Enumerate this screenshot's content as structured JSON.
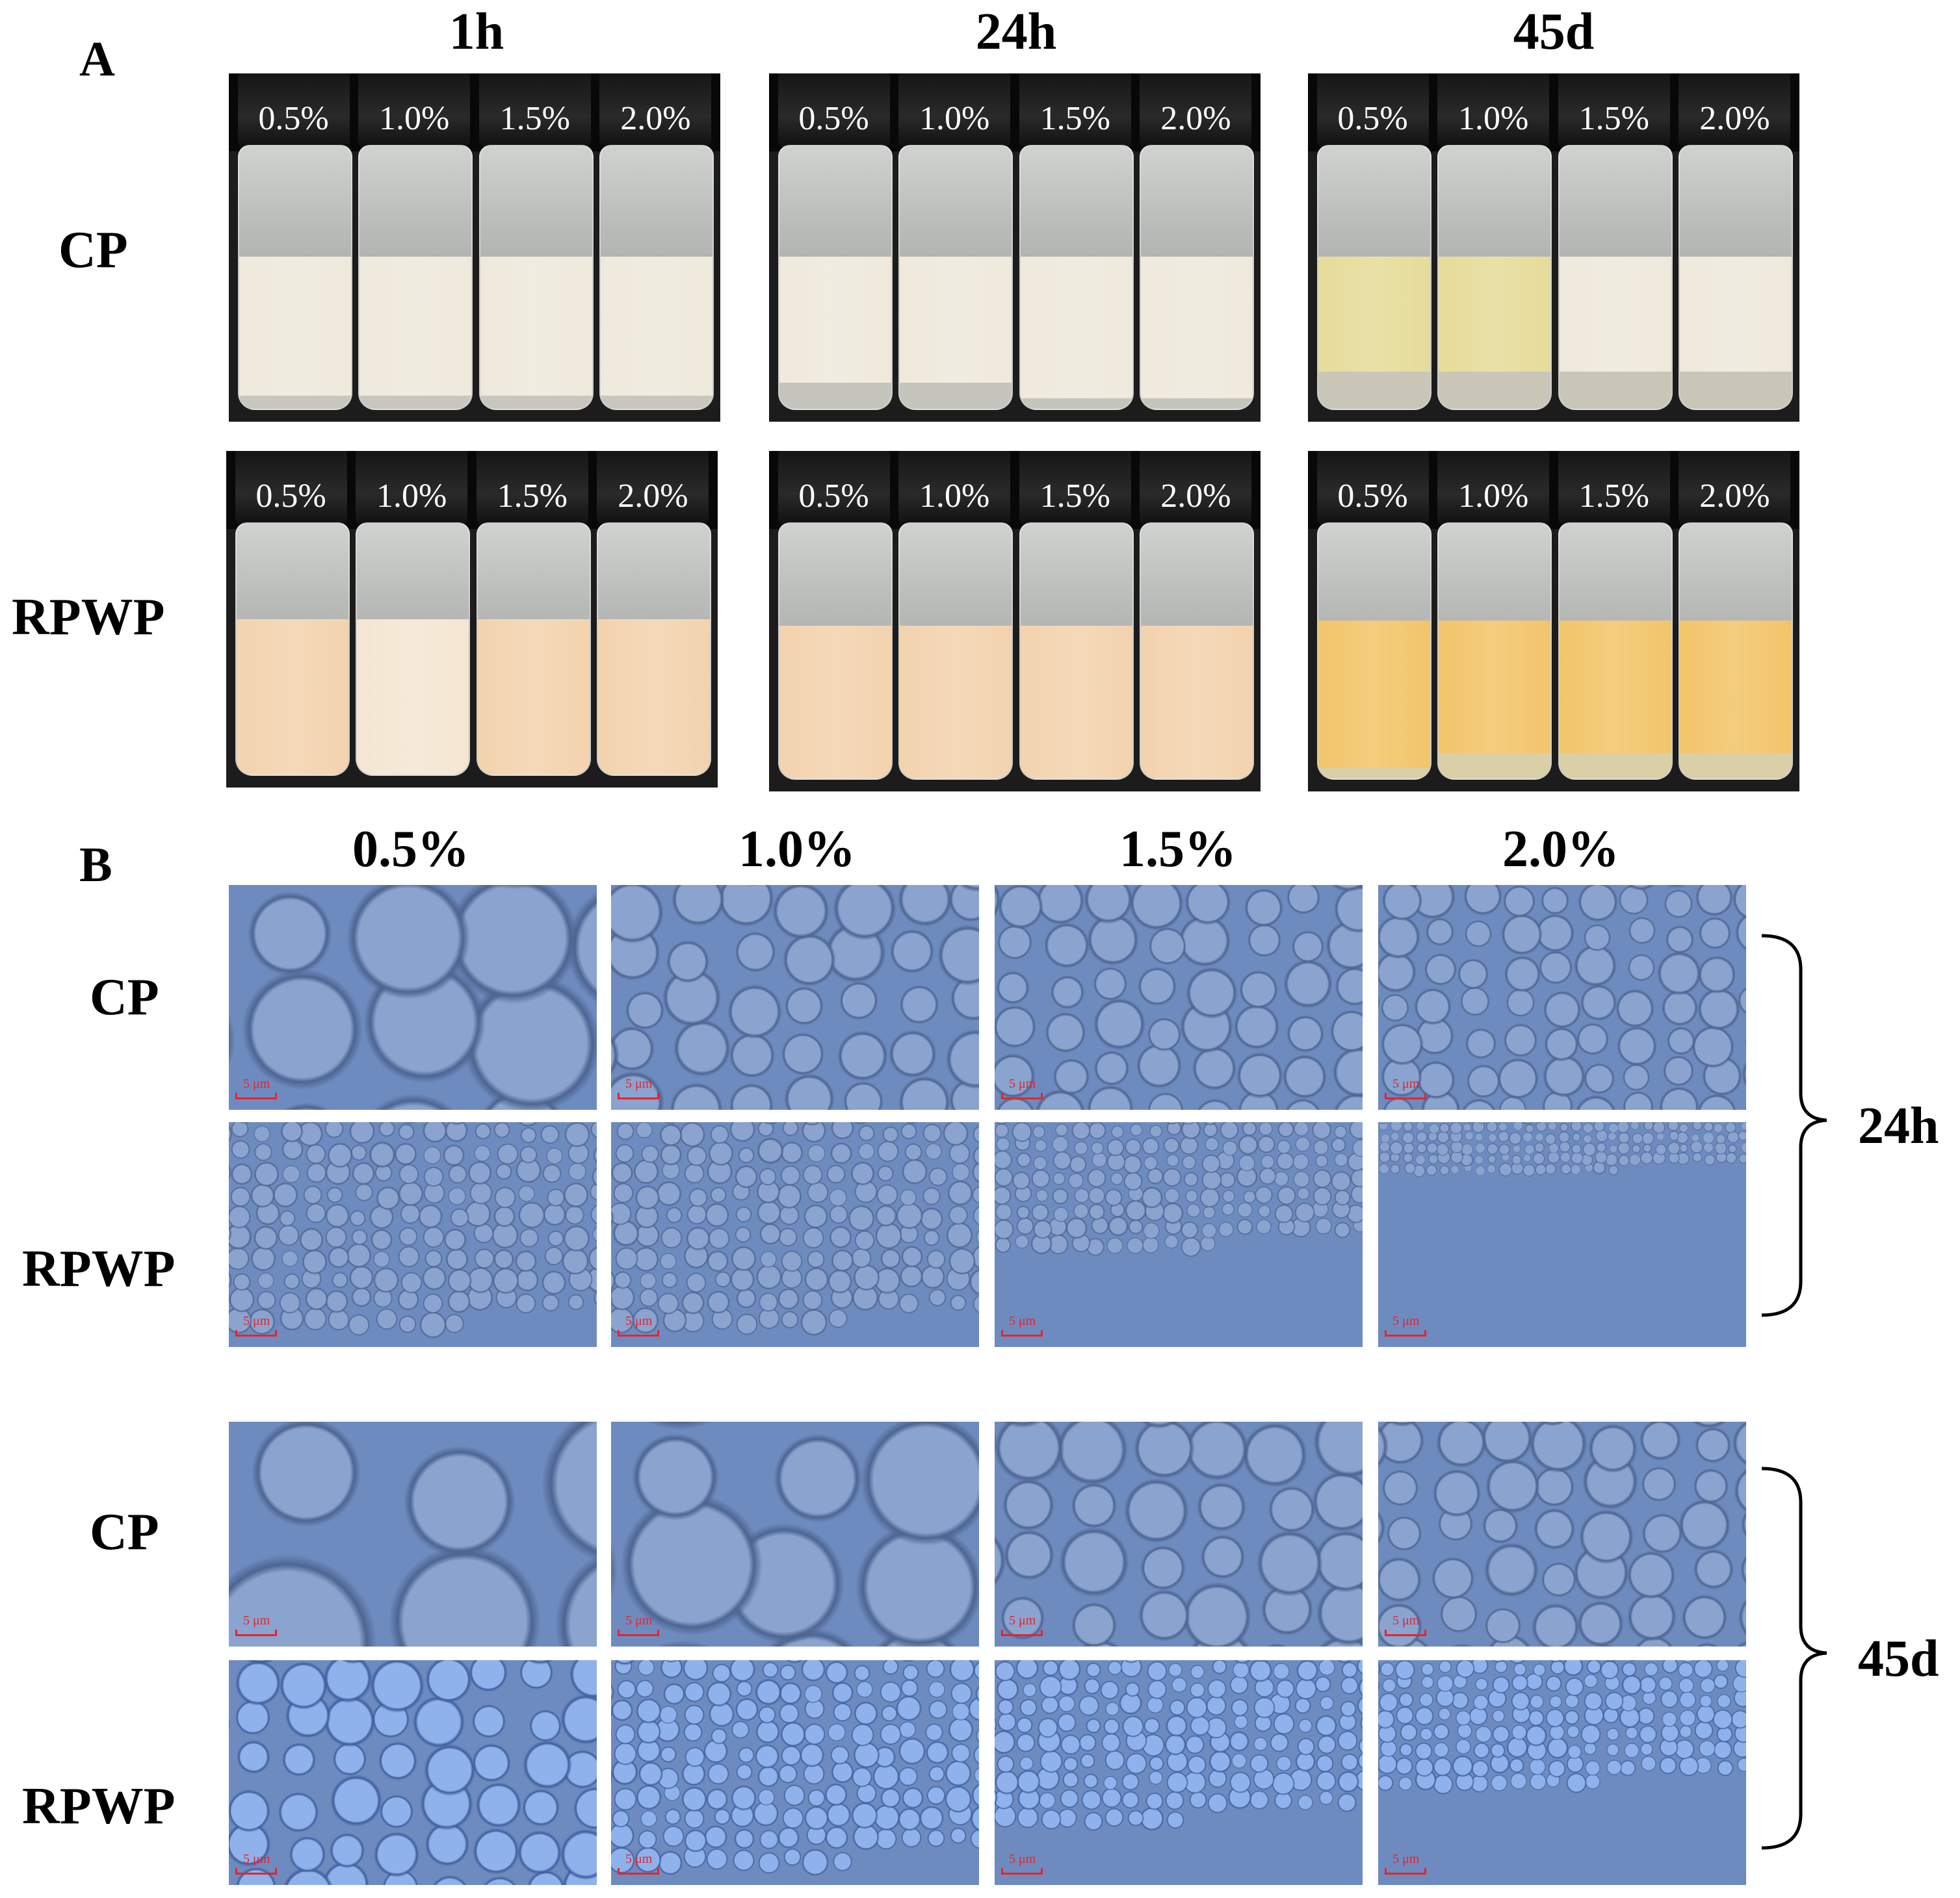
{
  "panel_a": {
    "letter": "A",
    "time_headers": [
      "1h",
      "24h",
      "45d"
    ],
    "row_headers": [
      "CP",
      "RPWP"
    ],
    "concentrations": [
      "0.5%",
      "1.0%",
      "1.5%",
      "2.0%"
    ]
  },
  "panel_b": {
    "letter": "B",
    "concentration_headers": [
      "0.5%",
      "1.0%",
      "1.5%",
      "2.0%"
    ],
    "row_headers": [
      "CP",
      "RPWP",
      "CP",
      "RPWP"
    ],
    "group_labels": [
      "24h",
      "45d"
    ],
    "scale_bar_label": "5 μm"
  },
  "colors": {
    "cp_emulsion": "#efe9dc",
    "cp_creamed_serum": "#e6dc9a",
    "rpwp_emulsion": "#f3d3ae",
    "rpwp_45d_emulsion": "#f2c56a",
    "micrograph_blue": "#6e8bc0",
    "scale_bar_red": "#e8232b"
  }
}
